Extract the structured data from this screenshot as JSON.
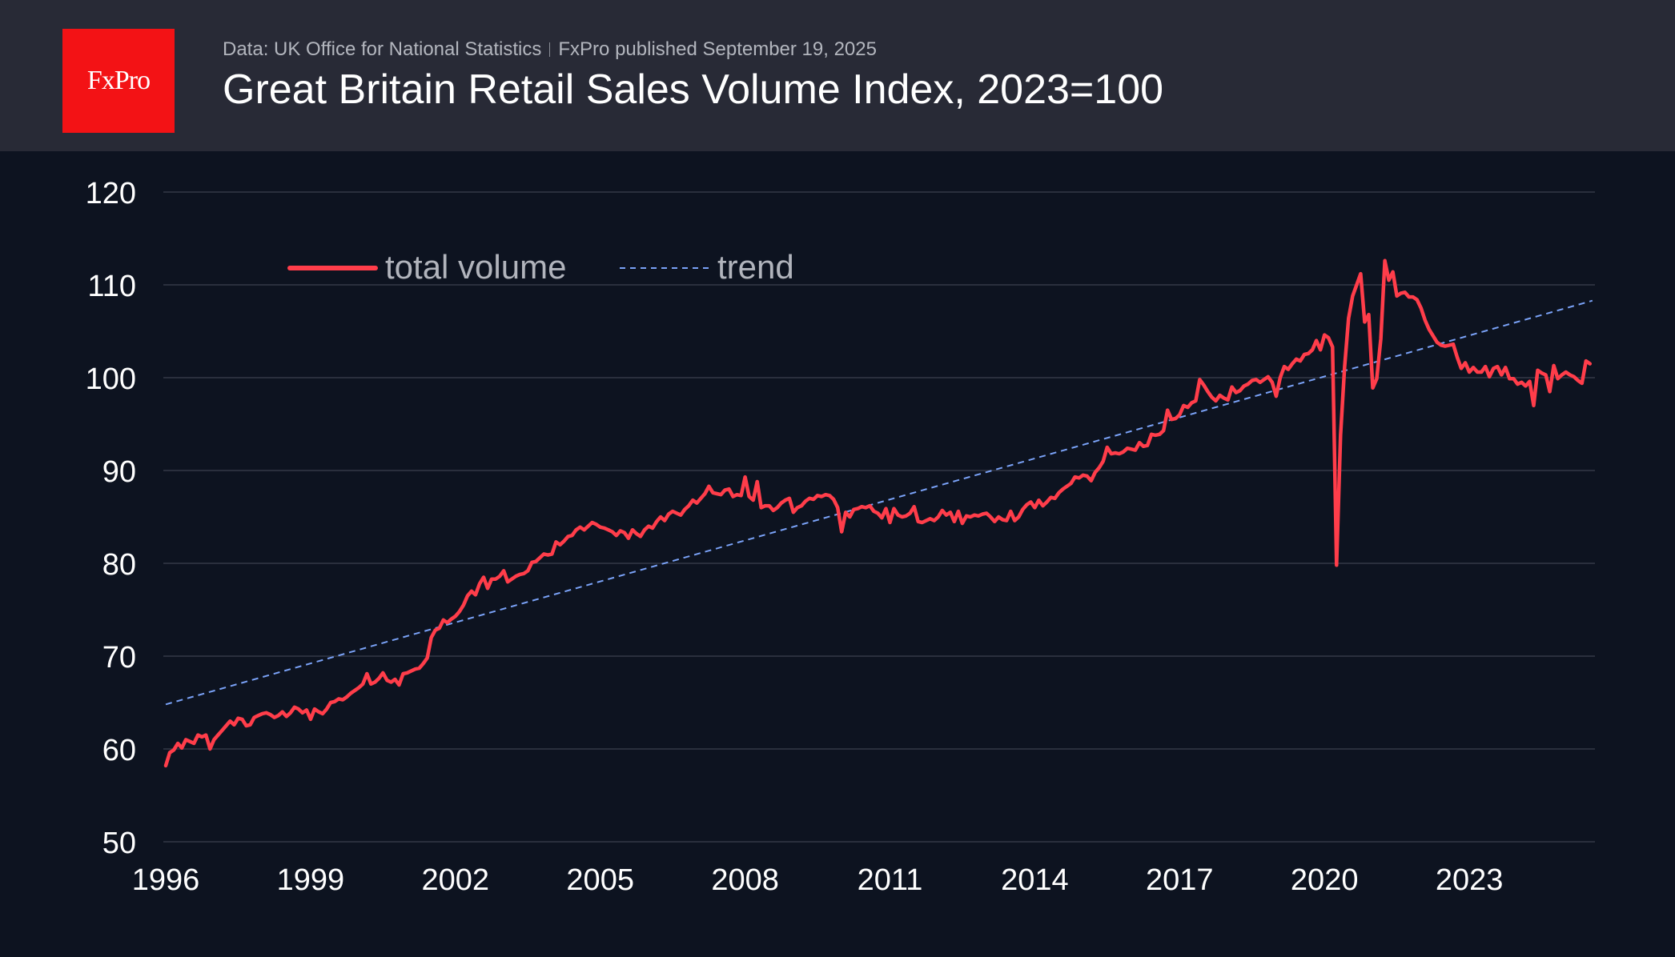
{
  "header": {
    "logo_text": "FxPro",
    "source": "Data: UK Office for National Statistics",
    "published": "FxPro published September 19, 2025",
    "title": "Great Britain Retail Sales Volume Index, 2023=100"
  },
  "colors": {
    "series": "#ff3d4a",
    "trend": "#7aa2f7",
    "grid": "#2a2f3d",
    "logo_bg": "#f31215"
  },
  "chart_data": {
    "type": "line",
    "title": "Great Britain Retail Sales Volume Index, 2023=100",
    "xlabel": "",
    "ylabel": "",
    "ylim": [
      50,
      120
    ],
    "yticks": [
      120,
      110,
      100,
      90,
      80,
      70,
      60,
      50
    ],
    "xlim": [
      1996.0,
      2025.55
    ],
    "xticks": [
      "1996",
      "1999",
      "2002",
      "2005",
      "2008",
      "2011",
      "2014",
      "2017",
      "2020",
      "2023"
    ],
    "xtick_values": [
      1996,
      1999,
      2002,
      2005,
      2008,
      2011,
      2014,
      2017,
      2020,
      2023
    ],
    "grid": true,
    "legend_position": "top-left",
    "start": "1996-01",
    "frequency": "monthly",
    "series": [
      {
        "name": "total volume",
        "style": "solid",
        "values_by_year": {
          "1996": [
            58.2,
            59.6,
            59.9,
            60.6,
            60.1,
            61.0,
            60.8,
            60.6,
            61.5,
            61.3,
            61.5,
            60.0
          ],
          "1997": [
            61.0,
            61.5,
            62.0,
            62.5,
            63.0,
            62.6,
            63.3,
            63.2,
            62.5,
            62.6,
            63.4,
            63.6
          ],
          "1998": [
            63.8,
            63.9,
            63.7,
            63.4,
            63.6,
            64.0,
            63.5,
            63.9,
            64.5,
            64.3,
            63.9,
            64.2
          ],
          "1999": [
            63.2,
            64.3,
            64.0,
            63.8,
            64.3,
            65.0,
            65.1,
            65.4,
            65.3,
            65.6,
            66.0,
            66.3
          ],
          "2000": [
            66.6,
            67.0,
            68.1,
            67.0,
            67.2,
            67.6,
            68.2,
            67.4,
            67.2,
            67.5,
            66.9,
            68.1
          ],
          "2001": [
            68.2,
            68.4,
            68.6,
            68.7,
            69.2,
            69.8,
            72.0,
            72.8,
            73.0,
            73.9,
            73.6,
            74.0
          ],
          "2002": [
            74.3,
            74.8,
            75.5,
            76.5,
            77.0,
            76.6,
            77.8,
            78.5,
            77.3,
            78.3,
            78.3,
            78.6
          ],
          "2003": [
            79.2,
            78.0,
            78.3,
            78.6,
            78.8,
            78.9,
            79.2,
            80.1,
            80.2,
            80.6,
            81.0,
            80.9
          ],
          "2004": [
            81.0,
            82.3,
            82.0,
            82.4,
            82.9,
            83.0,
            83.6,
            83.9,
            83.6,
            84.0,
            84.4,
            84.2
          ],
          "2005": [
            83.9,
            83.8,
            83.6,
            83.4,
            83.0,
            83.5,
            83.3,
            82.7,
            83.6,
            83.2,
            82.9,
            83.6
          ],
          "2006": [
            84.0,
            83.8,
            84.5,
            85.0,
            84.6,
            85.3,
            85.6,
            85.4,
            85.2,
            85.8,
            86.2,
            86.8
          ],
          "2007": [
            86.5,
            87.0,
            87.5,
            88.3,
            87.6,
            87.5,
            87.4,
            87.9,
            88.0,
            87.2,
            87.4,
            87.3
          ],
          "2008": [
            89.3,
            87.2,
            86.8,
            88.8,
            86.0,
            86.2,
            86.2,
            85.7,
            86.0,
            86.5,
            86.8,
            87.0
          ],
          "2009": [
            85.5,
            86.0,
            86.2,
            86.7,
            87.0,
            86.9,
            87.3,
            87.2,
            87.4,
            87.3,
            86.9,
            86.0
          ],
          "2010": [
            83.4,
            85.5,
            85.0,
            85.8,
            85.9,
            86.1,
            86.0,
            86.2,
            85.6,
            85.4,
            84.9,
            85.9
          ],
          "2011": [
            84.4,
            85.9,
            85.2,
            85.0,
            85.1,
            85.4,
            86.1,
            84.5,
            84.4,
            84.6,
            84.8,
            84.6
          ],
          "2012": [
            85.0,
            85.7,
            85.2,
            85.5,
            84.5,
            85.6,
            84.3,
            85.1,
            85.0,
            85.2,
            85.1,
            85.3
          ],
          "2013": [
            85.4,
            85.0,
            84.5,
            85.0,
            84.7,
            84.6,
            85.6,
            84.6,
            85.0,
            85.8,
            86.3,
            86.6
          ],
          "2014": [
            86.0,
            86.8,
            86.2,
            86.6,
            87.1,
            87.0,
            87.6,
            88.0,
            88.3,
            88.6,
            89.3,
            89.2
          ],
          "2015": [
            89.5,
            89.4,
            88.9,
            89.8,
            90.3,
            91.0,
            92.5,
            91.8,
            91.9,
            91.8,
            92.0,
            92.4
          ],
          "2016": [
            92.3,
            92.2,
            93.0,
            92.6,
            92.7,
            93.9,
            93.8,
            93.9,
            94.3,
            96.5,
            95.5,
            95.6
          ],
          "2017": [
            96.0,
            97.0,
            96.8,
            97.3,
            97.5,
            99.8,
            99.2,
            98.5,
            97.9,
            97.5,
            98.1,
            97.8
          ],
          "2018": [
            97.6,
            99.0,
            98.4,
            98.6,
            99.1,
            99.3,
            99.7,
            99.8,
            99.5,
            99.8,
            100.1,
            99.5
          ],
          "2019": [
            98.0,
            100.0,
            101.2,
            100.9,
            101.5,
            102.0,
            101.8,
            102.5,
            102.6,
            103.0,
            104.0,
            103.0
          ],
          "2020": [
            104.6,
            104.3,
            103.3,
            79.8,
            93.8,
            101.1,
            106.4,
            108.8,
            110.0,
            111.2,
            106.0,
            106.8
          ],
          "2021": [
            98.9,
            99.9,
            104.2,
            112.6,
            110.5,
            111.4,
            108.8,
            109.1,
            109.2,
            108.7,
            108.7,
            108.4
          ],
          "2022": [
            107.5,
            106.2,
            105.2,
            104.5,
            103.8,
            103.5,
            103.4,
            103.5,
            103.6,
            102.2,
            101.0,
            101.6
          ],
          "2023": [
            100.6,
            101.1,
            100.6,
            100.6,
            101.2,
            100.1,
            101.0,
            101.2,
            100.3,
            101.1,
            99.9,
            99.9
          ],
          "2024": [
            99.3,
            99.5,
            99.1,
            99.6,
            97.0,
            100.8,
            100.5,
            100.3,
            98.5,
            101.3,
            99.9,
            100.3
          ],
          "2025": [
            100.6,
            100.3,
            100.1,
            99.7,
            99.4,
            101.8,
            101.5
          ]
        }
      },
      {
        "name": "trend",
        "style": "dashed",
        "linear": {
          "start_x": 1996.0,
          "start_value": 64.8,
          "end_x": 2025.55,
          "end_value": 108.3
        }
      }
    ]
  },
  "legend": [
    {
      "label": "total volume"
    },
    {
      "label": "trend"
    }
  ]
}
